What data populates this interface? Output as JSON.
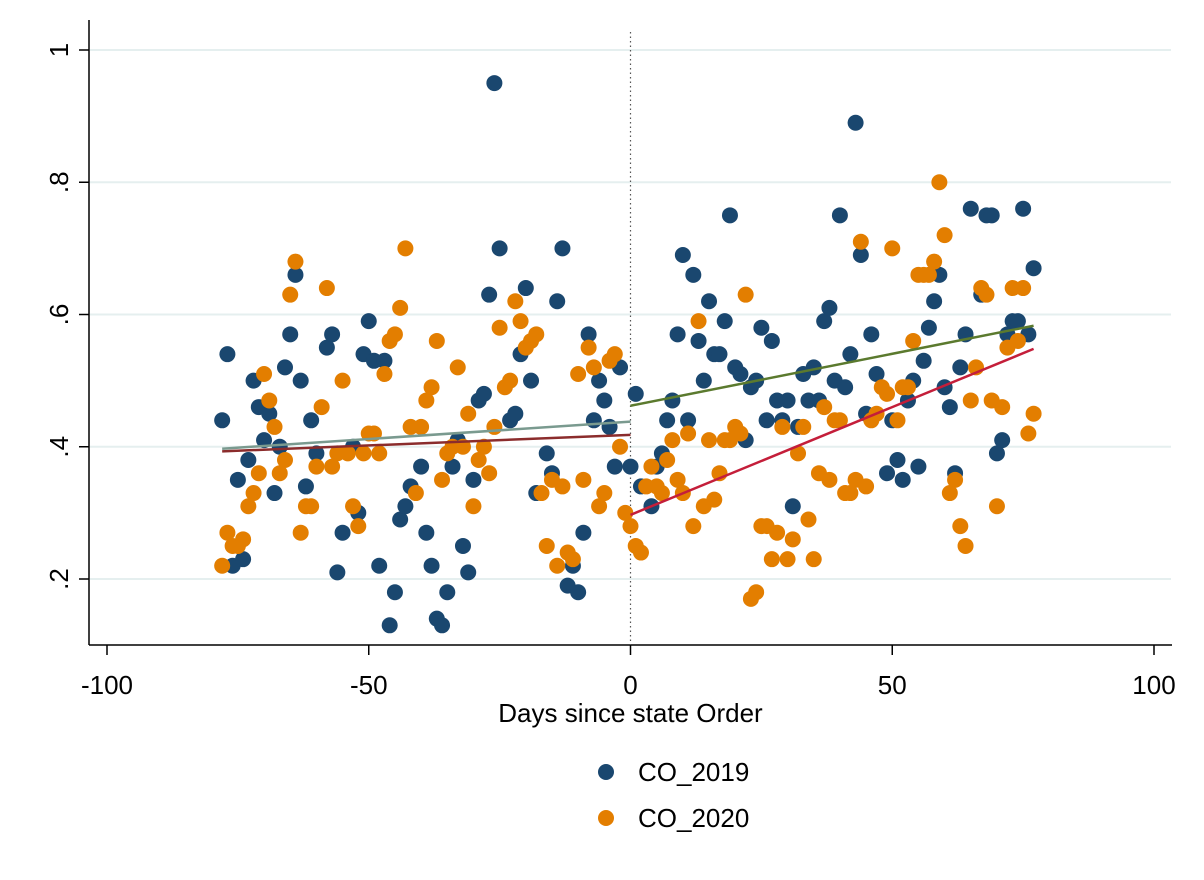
{
  "chart_data": {
    "type": "scatter",
    "title": "",
    "xlabel": "Days since state Order",
    "ylabel": "",
    "xlim": [
      -100,
      100
    ],
    "ylim": [
      0.2,
      1
    ],
    "x_ticks": [
      -100,
      -50,
      0,
      50,
      100
    ],
    "x_tick_labels": [
      "-100",
      "-50",
      "0",
      "50",
      "100"
    ],
    "y_ticks": [
      0.2,
      0.4,
      0.6,
      0.8,
      1.0
    ],
    "y_tick_labels": [
      ".2",
      ".4",
      ".6",
      ".8",
      "1"
    ],
    "grid": true,
    "legend_position": "bottom",
    "vertical_reference_line_x": 0,
    "colors": {
      "CO_2019": "#1a476f",
      "CO_2020": "#e37e00",
      "fit_2019_pre": "#7a9a8f",
      "fit_2019_post": "#5b7a2e",
      "fit_2020_pre": "#8b2c2c",
      "fit_2020_post": "#c41e3a",
      "grid": "#e5efef",
      "reference_line": "#555555"
    },
    "series": [
      {
        "name": "CO_2019",
        "points": [
          [
            -78,
            0.44
          ],
          [
            -77,
            0.54
          ],
          [
            -75,
            0.35
          ],
          [
            -76,
            0.22
          ],
          [
            -74,
            0.23
          ],
          [
            -73,
            0.38
          ],
          [
            -72,
            0.5
          ],
          [
            -71,
            0.46
          ],
          [
            -70,
            0.41
          ],
          [
            -69,
            0.45
          ],
          [
            -68,
            0.33
          ],
          [
            -67,
            0.4
          ],
          [
            -66,
            0.52
          ],
          [
            -65,
            0.57
          ],
          [
            -64,
            0.66
          ],
          [
            -63,
            0.5
          ],
          [
            -62,
            0.34
          ],
          [
            -61,
            0.44
          ],
          [
            -60,
            0.39
          ],
          [
            -58,
            0.55
          ],
          [
            -57,
            0.57
          ],
          [
            -56,
            0.21
          ],
          [
            -55,
            0.27
          ],
          [
            -53,
            0.4
          ],
          [
            -52,
            0.3
          ],
          [
            -51,
            0.54
          ],
          [
            -50,
            0.59
          ],
          [
            -49,
            0.53
          ],
          [
            -48,
            0.22
          ],
          [
            -47,
            0.53
          ],
          [
            -46,
            0.13
          ],
          [
            -45,
            0.18
          ],
          [
            -44,
            0.29
          ],
          [
            -43,
            0.31
          ],
          [
            -42,
            0.34
          ],
          [
            -40,
            0.37
          ],
          [
            -39,
            0.27
          ],
          [
            -38,
            0.22
          ],
          [
            -37,
            0.14
          ],
          [
            -36,
            0.13
          ],
          [
            -35,
            0.18
          ],
          [
            -34,
            0.37
          ],
          [
            -33,
            0.41
          ],
          [
            -32,
            0.25
          ],
          [
            -31,
            0.21
          ],
          [
            -30,
            0.35
          ],
          [
            -29,
            0.47
          ],
          [
            -28,
            0.48
          ],
          [
            -27,
            0.63
          ],
          [
            -26,
            0.95
          ],
          [
            -25,
            0.7
          ],
          [
            -23,
            0.44
          ],
          [
            -22,
            0.45
          ],
          [
            -21,
            0.54
          ],
          [
            -20,
            0.64
          ],
          [
            -19,
            0.5
          ],
          [
            -18,
            0.33
          ],
          [
            -16,
            0.39
          ],
          [
            -15,
            0.36
          ],
          [
            -14,
            0.62
          ],
          [
            -13,
            0.7
          ],
          [
            -12,
            0.19
          ],
          [
            -11,
            0.22
          ],
          [
            -10,
            0.18
          ],
          [
            -9,
            0.27
          ],
          [
            -8,
            0.57
          ],
          [
            -7,
            0.44
          ],
          [
            -6,
            0.5
          ],
          [
            -5,
            0.47
          ],
          [
            -4,
            0.43
          ],
          [
            -3,
            0.37
          ],
          [
            -2,
            0.52
          ],
          [
            0,
            0.37
          ],
          [
            1,
            0.48
          ],
          [
            2,
            0.34
          ],
          [
            4,
            0.31
          ],
          [
            5,
            0.37
          ],
          [
            6,
            0.39
          ],
          [
            7,
            0.44
          ],
          [
            8,
            0.47
          ],
          [
            9,
            0.57
          ],
          [
            10,
            0.69
          ],
          [
            11,
            0.44
          ],
          [
            12,
            0.66
          ],
          [
            13,
            0.56
          ],
          [
            14,
            0.5
          ],
          [
            15,
            0.62
          ],
          [
            16,
            0.54
          ],
          [
            17,
            0.54
          ],
          [
            18,
            0.59
          ],
          [
            19,
            0.75
          ],
          [
            20,
            0.52
          ],
          [
            21,
            0.51
          ],
          [
            22,
            0.41
          ],
          [
            23,
            0.49
          ],
          [
            24,
            0.5
          ],
          [
            25,
            0.58
          ],
          [
            26,
            0.44
          ],
          [
            27,
            0.56
          ],
          [
            28,
            0.47
          ],
          [
            29,
            0.44
          ],
          [
            30,
            0.47
          ],
          [
            31,
            0.31
          ],
          [
            32,
            0.43
          ],
          [
            33,
            0.51
          ],
          [
            34,
            0.47
          ],
          [
            35,
            0.52
          ],
          [
            36,
            0.47
          ],
          [
            37,
            0.59
          ],
          [
            38,
            0.61
          ],
          [
            39,
            0.5
          ],
          [
            40,
            0.75
          ],
          [
            41,
            0.49
          ],
          [
            42,
            0.54
          ],
          [
            43,
            0.89
          ],
          [
            44,
            0.69
          ],
          [
            45,
            0.45
          ],
          [
            46,
            0.57
          ],
          [
            47,
            0.51
          ],
          [
            49,
            0.36
          ],
          [
            50,
            0.44
          ],
          [
            51,
            0.38
          ],
          [
            52,
            0.35
          ],
          [
            53,
            0.47
          ],
          [
            54,
            0.5
          ],
          [
            55,
            0.37
          ],
          [
            56,
            0.53
          ],
          [
            57,
            0.58
          ],
          [
            58,
            0.62
          ],
          [
            59,
            0.66
          ],
          [
            60,
            0.49
          ],
          [
            61,
            0.46
          ],
          [
            62,
            0.36
          ],
          [
            63,
            0.52
          ],
          [
            64,
            0.57
          ],
          [
            65,
            0.76
          ],
          [
            67,
            0.63
          ],
          [
            68,
            0.75
          ],
          [
            69,
            0.75
          ],
          [
            70,
            0.39
          ],
          [
            71,
            0.41
          ],
          [
            72,
            0.57
          ],
          [
            73,
            0.59
          ],
          [
            74,
            0.59
          ],
          [
            75,
            0.76
          ],
          [
            76,
            0.57
          ],
          [
            77,
            0.67
          ]
        ]
      },
      {
        "name": "CO_2020",
        "points": [
          [
            -78,
            0.22
          ],
          [
            -77,
            0.27
          ],
          [
            -76,
            0.25
          ],
          [
            -75,
            0.25
          ],
          [
            -74,
            0.26
          ],
          [
            -73,
            0.31
          ],
          [
            -72,
            0.33
          ],
          [
            -71,
            0.36
          ],
          [
            -70,
            0.51
          ],
          [
            -69,
            0.47
          ],
          [
            -68,
            0.43
          ],
          [
            -67,
            0.36
          ],
          [
            -66,
            0.38
          ],
          [
            -65,
            0.63
          ],
          [
            -64,
            0.68
          ],
          [
            -63,
            0.27
          ],
          [
            -62,
            0.31
          ],
          [
            -61,
            0.31
          ],
          [
            -60,
            0.37
          ],
          [
            -59,
            0.46
          ],
          [
            -58,
            0.64
          ],
          [
            -57,
            0.37
          ],
          [
            -56,
            0.39
          ],
          [
            -55,
            0.5
          ],
          [
            -54,
            0.39
          ],
          [
            -53,
            0.31
          ],
          [
            -52,
            0.28
          ],
          [
            -51,
            0.39
          ],
          [
            -50,
            0.42
          ],
          [
            -49,
            0.42
          ],
          [
            -48,
            0.39
          ],
          [
            -47,
            0.51
          ],
          [
            -46,
            0.56
          ],
          [
            -45,
            0.57
          ],
          [
            -44,
            0.61
          ],
          [
            -43,
            0.7
          ],
          [
            -42,
            0.43
          ],
          [
            -41,
            0.33
          ],
          [
            -40,
            0.43
          ],
          [
            -39,
            0.47
          ],
          [
            -38,
            0.49
          ],
          [
            -37,
            0.56
          ],
          [
            -36,
            0.35
          ],
          [
            -35,
            0.39
          ],
          [
            -34,
            0.4
          ],
          [
            -33,
            0.52
          ],
          [
            -32,
            0.4
          ],
          [
            -31,
            0.45
          ],
          [
            -30,
            0.31
          ],
          [
            -29,
            0.38
          ],
          [
            -28,
            0.4
          ],
          [
            -27,
            0.36
          ],
          [
            -26,
            0.43
          ],
          [
            -25,
            0.58
          ],
          [
            -24,
            0.49
          ],
          [
            -23,
            0.5
          ],
          [
            -22,
            0.62
          ],
          [
            -21,
            0.59
          ],
          [
            -20,
            0.55
          ],
          [
            -19,
            0.56
          ],
          [
            -18,
            0.57
          ],
          [
            -17,
            0.33
          ],
          [
            -16,
            0.25
          ],
          [
            -15,
            0.35
          ],
          [
            -14,
            0.22
          ],
          [
            -13,
            0.34
          ],
          [
            -12,
            0.24
          ],
          [
            -11,
            0.23
          ],
          [
            -10,
            0.51
          ],
          [
            -9,
            0.35
          ],
          [
            -8,
            0.55
          ],
          [
            -7,
            0.52
          ],
          [
            -6,
            0.31
          ],
          [
            -5,
            0.33
          ],
          [
            -4,
            0.53
          ],
          [
            -3,
            0.54
          ],
          [
            -2,
            0.4
          ],
          [
            -1,
            0.3
          ],
          [
            0,
            0.28
          ],
          [
            1,
            0.25
          ],
          [
            2,
            0.24
          ],
          [
            3,
            0.34
          ],
          [
            4,
            0.37
          ],
          [
            5,
            0.34
          ],
          [
            6,
            0.33
          ],
          [
            7,
            0.38
          ],
          [
            8,
            0.41
          ],
          [
            9,
            0.35
          ],
          [
            10,
            0.33
          ],
          [
            11,
            0.42
          ],
          [
            12,
            0.28
          ],
          [
            13,
            0.59
          ],
          [
            14,
            0.31
          ],
          [
            15,
            0.41
          ],
          [
            16,
            0.32
          ],
          [
            17,
            0.36
          ],
          [
            18,
            0.41
          ],
          [
            19,
            0.41
          ],
          [
            20,
            0.43
          ],
          [
            21,
            0.42
          ],
          [
            22,
            0.63
          ],
          [
            23,
            0.17
          ],
          [
            24,
            0.18
          ],
          [
            25,
            0.28
          ],
          [
            26,
            0.28
          ],
          [
            27,
            0.23
          ],
          [
            28,
            0.27
          ],
          [
            29,
            0.43
          ],
          [
            30,
            0.23
          ],
          [
            31,
            0.26
          ],
          [
            32,
            0.39
          ],
          [
            33,
            0.43
          ],
          [
            34,
            0.29
          ],
          [
            35,
            0.23
          ],
          [
            36,
            0.36
          ],
          [
            37,
            0.46
          ],
          [
            38,
            0.35
          ],
          [
            39,
            0.44
          ],
          [
            40,
            0.44
          ],
          [
            41,
            0.33
          ],
          [
            42,
            0.33
          ],
          [
            43,
            0.35
          ],
          [
            44,
            0.71
          ],
          [
            45,
            0.34
          ],
          [
            46,
            0.44
          ],
          [
            47,
            0.45
          ],
          [
            48,
            0.49
          ],
          [
            49,
            0.48
          ],
          [
            50,
            0.7
          ],
          [
            51,
            0.44
          ],
          [
            52,
            0.49
          ],
          [
            53,
            0.49
          ],
          [
            54,
            0.56
          ],
          [
            55,
            0.66
          ],
          [
            56,
            0.66
          ],
          [
            57,
            0.66
          ],
          [
            58,
            0.68
          ],
          [
            59,
            0.8
          ],
          [
            60,
            0.72
          ],
          [
            61,
            0.33
          ],
          [
            62,
            0.35
          ],
          [
            63,
            0.28
          ],
          [
            64,
            0.25
          ],
          [
            65,
            0.47
          ],
          [
            66,
            0.52
          ],
          [
            67,
            0.64
          ],
          [
            68,
            0.63
          ],
          [
            69,
            0.47
          ],
          [
            70,
            0.31
          ],
          [
            71,
            0.46
          ],
          [
            72,
            0.55
          ],
          [
            73,
            0.64
          ],
          [
            74,
            0.56
          ],
          [
            75,
            0.64
          ],
          [
            76,
            0.42
          ],
          [
            77,
            0.45
          ]
        ]
      }
    ],
    "fit_lines": [
      {
        "series": "CO_2019",
        "segment": "pre",
        "x": [
          -78,
          0
        ],
        "y": [
          0.397,
          0.438
        ],
        "color_key": "fit_2019_pre"
      },
      {
        "series": "CO_2020",
        "segment": "pre",
        "x": [
          -78,
          0
        ],
        "y": [
          0.393,
          0.418
        ],
        "color_key": "fit_2020_pre"
      },
      {
        "series": "CO_2019",
        "segment": "post",
        "x": [
          0,
          77
        ],
        "y": [
          0.462,
          0.583
        ],
        "color_key": "fit_2019_post"
      },
      {
        "series": "CO_2020",
        "segment": "post",
        "x": [
          0,
          77
        ],
        "y": [
          0.297,
          0.548
        ],
        "color_key": "fit_2020_post"
      }
    ],
    "legend": [
      {
        "label": "CO_2019",
        "color_key": "CO_2019"
      },
      {
        "label": "CO_2020",
        "color_key": "CO_2020"
      }
    ]
  }
}
